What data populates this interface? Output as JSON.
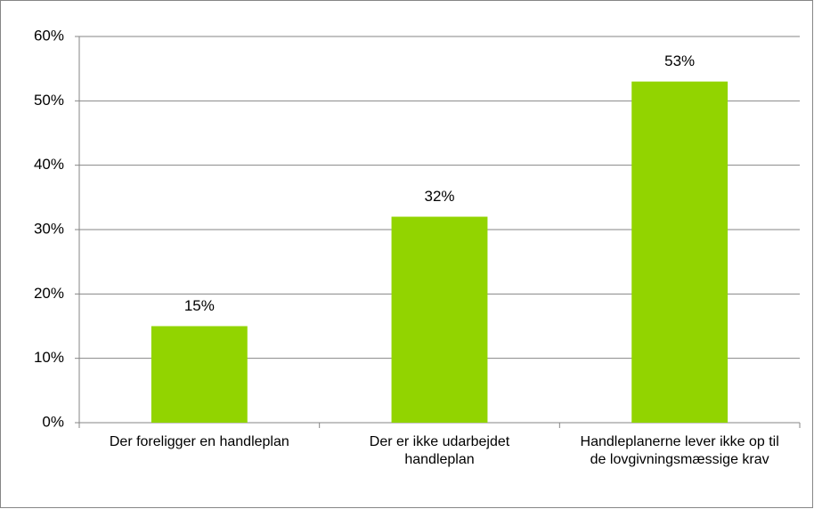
{
  "chart_data": {
    "type": "bar",
    "categories": [
      "Der foreligger en handleplan",
      "Der er ikke udarbejdet handleplan",
      "Handleplanerne lever ikke op til de lovgivningsmæssige krav"
    ],
    "values": [
      15,
      32,
      53
    ],
    "value_labels": [
      "15%",
      "32%",
      "53%"
    ],
    "color": "#92d400",
    "ylim": [
      0,
      60
    ],
    "yticks": [
      {
        "value": 0,
        "label": "0%"
      },
      {
        "value": 10,
        "label": "10%"
      },
      {
        "value": 20,
        "label": "20%"
      },
      {
        "value": 30,
        "label": "30%"
      },
      {
        "value": 40,
        "label": "40%"
      },
      {
        "value": 50,
        "label": "50%"
      },
      {
        "value": 60,
        "label": "60%"
      }
    ],
    "grid": true
  }
}
